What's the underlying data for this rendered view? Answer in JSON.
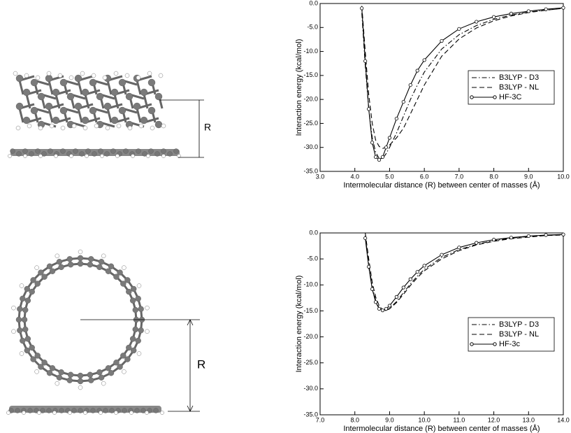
{
  "figure": {
    "labels": [
      "R",
      "R"
    ]
  },
  "chart_data": [
    {
      "type": "line",
      "xlabel": "Intermolecular distance (R) between center of masses (Å)",
      "ylabel": "Interaction energy (kcal/mol)",
      "xlim": [
        3,
        10
      ],
      "ylim": [
        -35,
        0
      ],
      "xticks": [
        {
          "value": 3,
          "label": "3.0"
        },
        {
          "value": 4,
          "label": "4.0"
        },
        {
          "value": 5,
          "label": "5.0"
        },
        {
          "value": 6,
          "label": "6.0"
        },
        {
          "value": 7,
          "label": "7.0"
        },
        {
          "value": 8,
          "label": "8.0"
        },
        {
          "value": 9,
          "label": "9.0"
        },
        {
          "value": 10,
          "label": "10.0"
        }
      ],
      "yticks": [
        {
          "value": 0,
          "label": "0.0"
        },
        {
          "value": -5,
          "label": "-5.0"
        },
        {
          "value": -10,
          "label": "-10.0"
        },
        {
          "value": -15,
          "label": "-15.0"
        },
        {
          "value": -20,
          "label": "-20.0"
        },
        {
          "value": -25,
          "label": "-25.0"
        },
        {
          "value": -30,
          "label": "-30.0"
        },
        {
          "value": -35,
          "label": "-35.0"
        }
      ],
      "legend": "center right",
      "x": [
        4.2,
        4.3,
        4.4,
        4.5,
        4.6,
        4.7,
        4.8,
        4.9,
        5.0,
        5.2,
        5.4,
        5.6,
        5.8,
        6.0,
        6.5,
        7.0,
        7.5,
        8.0,
        8.5,
        9.0,
        9.5,
        10.0
      ],
      "series": [
        {
          "name": "B3LYP - D3",
          "color": "#000000",
          "style": "dashdot",
          "values": [
            -2,
            -13,
            -22,
            -28,
            -31,
            -32.3,
            -32.3,
            -31.3,
            -30,
            -27,
            -23.5,
            -20,
            -17,
            -14.3,
            -9.5,
            -6.5,
            -4.6,
            -3.3,
            -2.4,
            -1.8,
            -1.4,
            -1.0
          ]
        },
        {
          "name": "B3LYP - NL",
          "color": "#000000",
          "style": "dashed",
          "values": [
            -0.5,
            -10,
            -19,
            -25,
            -28.5,
            -29.8,
            -30.2,
            -30,
            -29.5,
            -28,
            -26,
            -23,
            -20,
            -17,
            -11,
            -7.4,
            -5.1,
            -3.6,
            -2.6,
            -1.9,
            -1.4,
            -1.0
          ]
        },
        {
          "name": "HF-3C",
          "color": "#000000",
          "style": "solid",
          "marker": "circle",
          "values": [
            -1,
            -12,
            -22,
            -29,
            -32,
            -32.6,
            -32,
            -30,
            -28,
            -24,
            -20.5,
            -17,
            -14,
            -11.8,
            -7.8,
            -5.3,
            -3.8,
            -2.8,
            -2.1,
            -1.6,
            -1.2,
            -0.9
          ]
        }
      ]
    },
    {
      "type": "line",
      "xlabel": "Intermolecular distance (R) between center of masses (Å)",
      "ylabel": "Interaction energy (kcal/mol)",
      "xlim": [
        7,
        14
      ],
      "ylim": [
        -35,
        0
      ],
      "xticks": [
        {
          "value": 7,
          "label": "7.0"
        },
        {
          "value": 8,
          "label": "8.0"
        },
        {
          "value": 9,
          "label": "9.0"
        },
        {
          "value": 10,
          "label": "10.0"
        },
        {
          "value": 11,
          "label": "11.0"
        },
        {
          "value": 12,
          "label": "12.0"
        },
        {
          "value": 13,
          "label": "13.0"
        },
        {
          "value": 14,
          "label": "14.0"
        }
      ],
      "yticks": [
        {
          "value": 0,
          "label": "0.0"
        },
        {
          "value": -5,
          "label": "-5.0"
        },
        {
          "value": -10,
          "label": "-10.0"
        },
        {
          "value": -15,
          "label": "-15.0"
        },
        {
          "value": -20,
          "label": "-20.0"
        },
        {
          "value": -25,
          "label": "-25.0"
        },
        {
          "value": -30,
          "label": "-30.0"
        },
        {
          "value": -35,
          "label": "-35.0"
        }
      ],
      "legend": "center right",
      "x": [
        8.3,
        8.4,
        8.5,
        8.6,
        8.7,
        8.8,
        8.9,
        9.0,
        9.2,
        9.4,
        9.6,
        9.8,
        10.0,
        10.5,
        11.0,
        11.5,
        12.0,
        12.5,
        13.0,
        13.5,
        14.0
      ],
      "series": [
        {
          "name": "B3LYP - D3",
          "color": "#000000",
          "style": "dashdot",
          "values": [
            -0.5,
            -6,
            -10.3,
            -13,
            -14.5,
            -15,
            -14.9,
            -14.5,
            -13.2,
            -11.5,
            -9.8,
            -8.3,
            -7.0,
            -4.7,
            -3.2,
            -2.2,
            -1.5,
            -1.0,
            -0.7,
            -0.5,
            -0.3
          ]
        },
        {
          "name": "B3LYP - NL",
          "color": "#000000",
          "style": "dashed",
          "values": [
            0,
            -5,
            -9.5,
            -12.3,
            -14,
            -14.8,
            -14.9,
            -14.6,
            -13.4,
            -11.8,
            -10.1,
            -8.6,
            -7.3,
            -5.0,
            -3.4,
            -2.3,
            -1.6,
            -1.1,
            -0.8,
            -0.5,
            -0.4
          ]
        },
        {
          "name": "HF-3c",
          "color": "#000000",
          "style": "solid",
          "marker": "circle",
          "values": [
            -1,
            -6.5,
            -10.8,
            -13.3,
            -14.6,
            -14.9,
            -14.6,
            -14.0,
            -12.3,
            -10.5,
            -8.9,
            -7.5,
            -6.3,
            -4.2,
            -2.8,
            -1.9,
            -1.3,
            -0.9,
            -0.6,
            -0.4,
            -0.3
          ]
        }
      ]
    }
  ]
}
